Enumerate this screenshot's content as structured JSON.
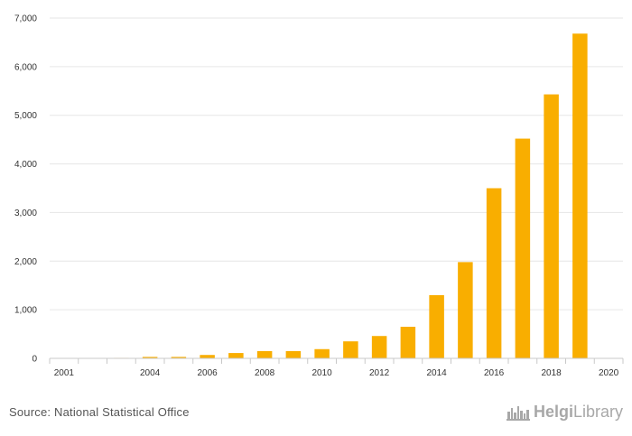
{
  "chart_data": {
    "type": "bar",
    "categories": [
      "2001",
      "2002",
      "2003",
      "2004",
      "2005",
      "2006",
      "2007",
      "2008",
      "2009",
      "2010",
      "2011",
      "2012",
      "2013",
      "2014",
      "2015",
      "2016",
      "2017",
      "2018",
      "2019",
      "2020"
    ],
    "x_tick_labels": [
      "2001",
      "2004",
      "2006",
      "2008",
      "2010",
      "2012",
      "2014",
      "2016",
      "2018",
      "2020"
    ],
    "series": [
      {
        "name": "Value",
        "color": "#f9ae00",
        "values": [
          0,
          0,
          10,
          30,
          30,
          70,
          110,
          150,
          150,
          190,
          350,
          460,
          650,
          1300,
          1980,
          3500,
          4520,
          5430,
          6680,
          0
        ]
      }
    ],
    "ylim": [
      0,
      7000
    ],
    "yticks": [
      0,
      1000,
      2000,
      3000,
      4000,
      5000,
      6000,
      7000
    ],
    "ytick_labels": [
      "0",
      "1,000",
      "2,000",
      "3,000",
      "4,000",
      "5,000",
      "6,000",
      "7,000"
    ],
    "title": "",
    "xlabel": "",
    "ylabel": "",
    "grid": true,
    "legend": "none"
  },
  "footer": {
    "source": "Source: National Statistical Office",
    "logo_bold": "Helgi",
    "logo_thin": "Library"
  }
}
